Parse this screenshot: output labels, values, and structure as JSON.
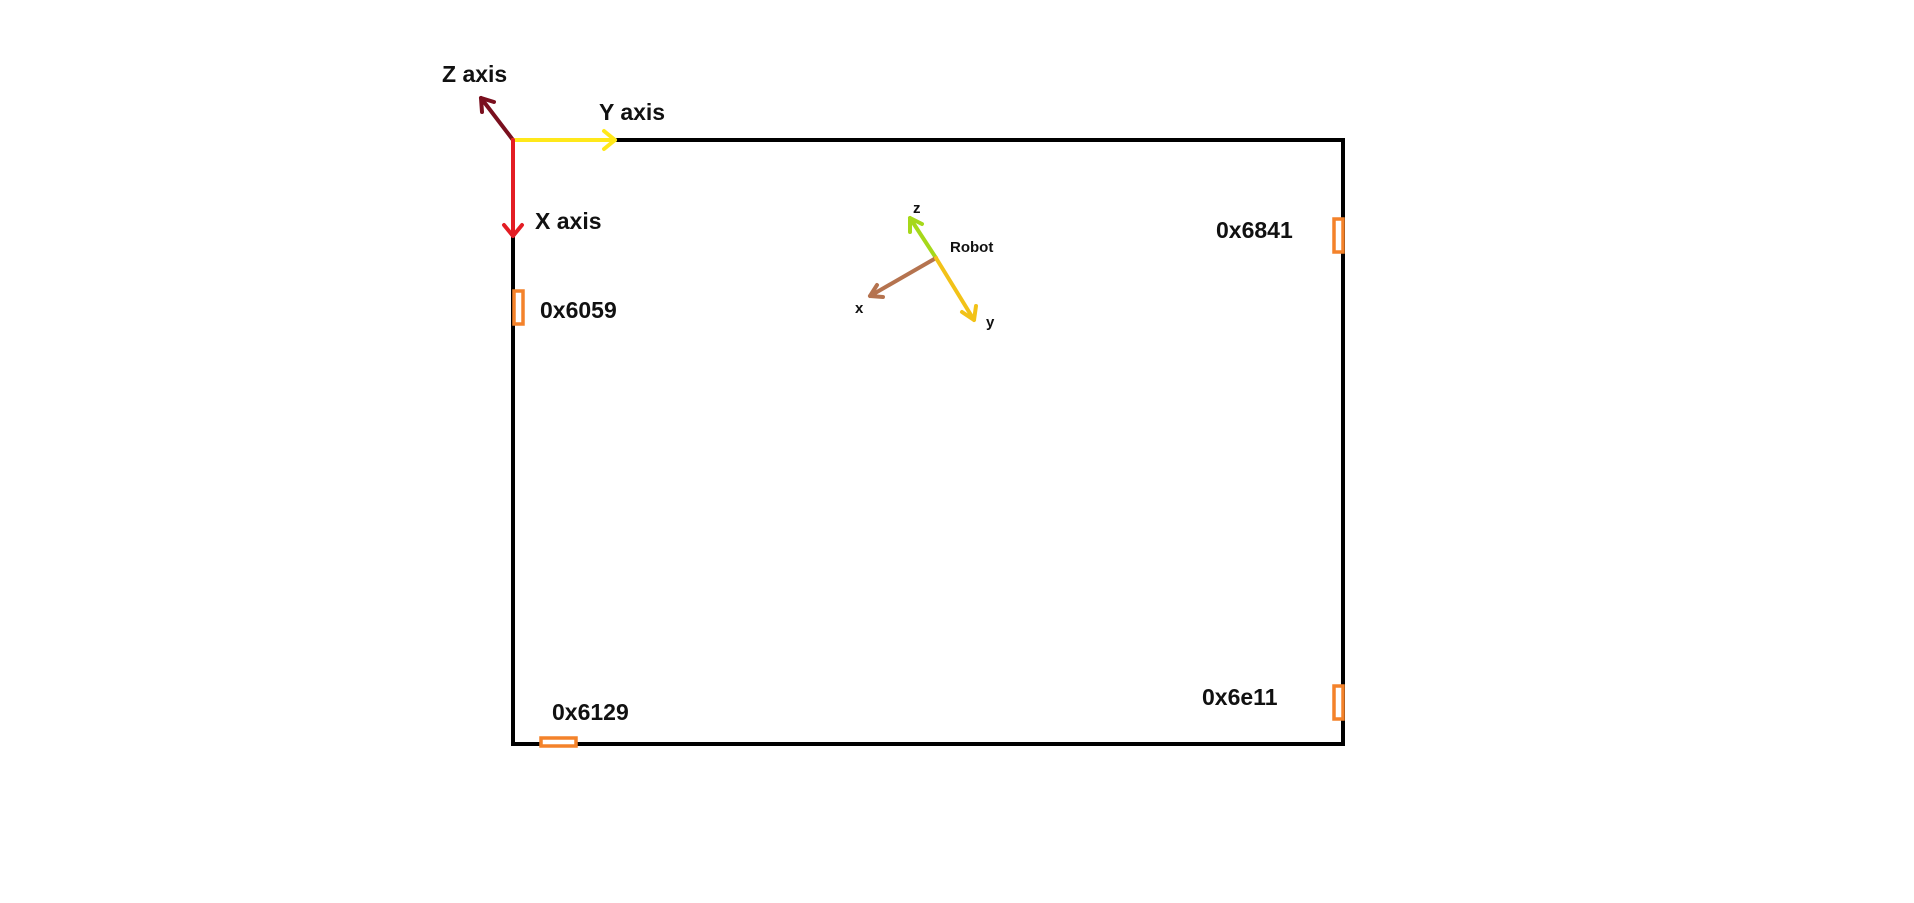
{
  "world_axes": {
    "z_label": "Z axis",
    "y_label": "Y axis",
    "x_label": "X axis"
  },
  "robot": {
    "label": "Robot",
    "z_label": "z",
    "x_label": "x",
    "y_label": "y"
  },
  "markers": [
    {
      "id": "0x6059"
    },
    {
      "id": "0x6841"
    },
    {
      "id": "0x6129"
    },
    {
      "id": "0x6e11"
    }
  ],
  "colors": {
    "frame": "#000000",
    "world_z": "#7a0f1e",
    "world_y": "#ffe81a",
    "world_x": "#e31d24",
    "robot_z": "#a6d81a",
    "robot_x": "#b5734f",
    "robot_y": "#f2c218",
    "marker": "#f4822a"
  }
}
